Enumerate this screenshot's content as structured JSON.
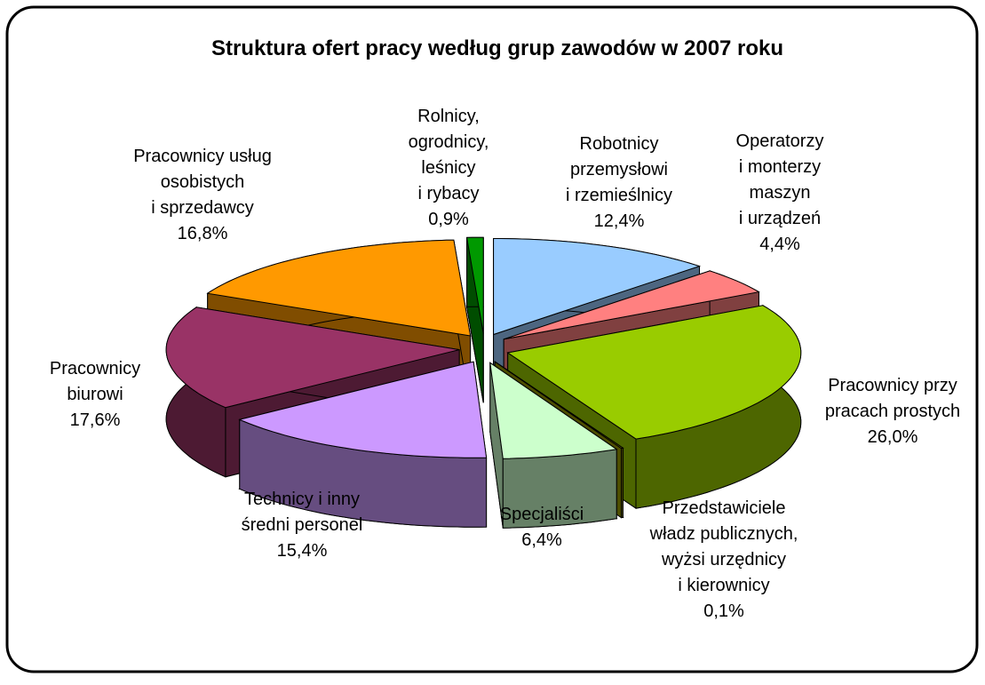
{
  "chart_data": {
    "type": "pie3d",
    "title": "Struktura ofert pracy według grup zawodów w 2007 roku",
    "categories": [
      "Robotnicy\nprzemysłowi\ni rzemieślnicy",
      "Operatorzy\ni monterzy\nmaszyn\ni urządzeń",
      "Pracownicy przy\npracach prostych",
      "Przedstawiciele\nwładz publicznych,\nwyżsi urzędnicy\ni kierownicy",
      "Specjaliści",
      "Technicy i inny\nśredni personel",
      "Pracownicy\nbiurowi",
      "Pracownicy usług\nosobistych\ni sprzedawcy",
      "Rolnicy,\nogrodnicy,\nleśnicy\ni rybacy"
    ],
    "values": [
      12.4,
      4.4,
      26.0,
      0.1,
      6.4,
      15.4,
      17.6,
      16.8,
      0.9
    ],
    "value_labels": [
      "12,4%",
      "4,4%",
      "26,0%",
      "0,1%",
      "6,4%",
      "15,4%",
      "17,6%",
      "16,8%",
      "0,9%"
    ],
    "colors": [
      "#99ccff",
      "#ff8080",
      "#99cc00",
      "#999900",
      "#ccffcc",
      "#cc99ff",
      "#993366",
      "#ff9900",
      "#009900"
    ]
  }
}
